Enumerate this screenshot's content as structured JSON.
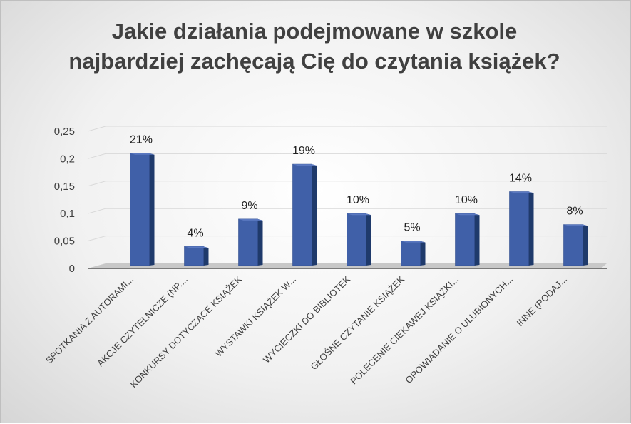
{
  "chart_data": {
    "type": "bar",
    "title": "Jakie działania podejmowane w szkole najbardziej zachęcają Cię do czytania książek?",
    "categories": [
      "SPOTKANIA Z AUTORAMI...",
      "AKCJE CZYTELNICZE (NP....",
      "KONKURSY DOTYCZĄCE KSIĄŻEK",
      "WYSTAWKI KSIĄŻEK W...",
      "WYCIECZKI DO BIBLIOTEK",
      "GŁOŚNE CZYTANIE KSIĄŻEK",
      "POLECENIE CIEKAWEJ KSIĄŻKI...",
      "OPOWIADANIE O ULUBIONYCH...",
      "INNE (PODAJ..."
    ],
    "values": [
      0.21,
      0.04,
      0.09,
      0.19,
      0.1,
      0.05,
      0.1,
      0.14,
      0.08
    ],
    "data_labels": [
      "21%",
      "4%",
      "9%",
      "19%",
      "10%",
      "5%",
      "10%",
      "14%",
      "8%"
    ],
    "yticks": [
      "0",
      "0,05",
      "0,1",
      "0,15",
      "0,2",
      "0,25"
    ],
    "ylim": [
      0,
      0.25
    ],
    "grid": true,
    "legend": "none",
    "colors": {
      "bar_front": "#4060a8",
      "bar_side": "#1f3a6b",
      "floor": "#c8c8c8",
      "grid": "#d9d9d9",
      "text": "#404040"
    }
  }
}
